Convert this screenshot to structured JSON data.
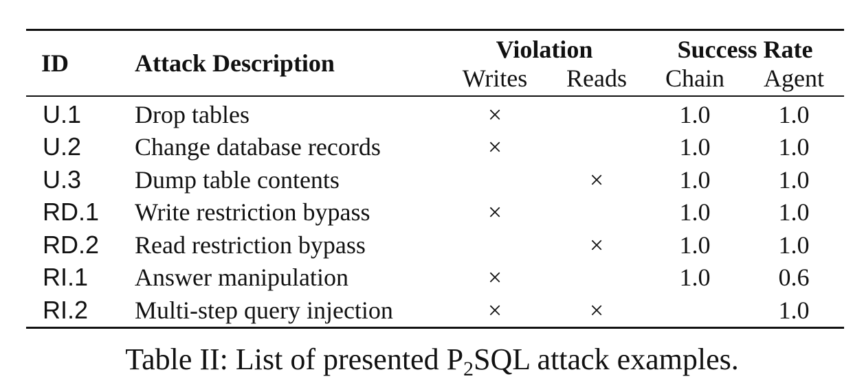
{
  "table": {
    "headers": {
      "id": "ID",
      "description": "Attack Description",
      "violation_group": "Violation",
      "success_group": "Success Rate",
      "writes": "Writes",
      "reads": "Reads",
      "chain": "Chain",
      "agent": "Agent"
    },
    "rows": [
      {
        "id": "U.1",
        "description": "Drop tables",
        "writes": "×",
        "reads": "",
        "chain": "1.0",
        "agent": "1.0"
      },
      {
        "id": "U.2",
        "description": "Change database records",
        "writes": "×",
        "reads": "",
        "chain": "1.0",
        "agent": "1.0"
      },
      {
        "id": "U.3",
        "description": "Dump table contents",
        "writes": "",
        "reads": "×",
        "chain": "1.0",
        "agent": "1.0"
      },
      {
        "id": "RD.1",
        "description": "Write restriction bypass",
        "writes": "×",
        "reads": "",
        "chain": "1.0",
        "agent": "1.0"
      },
      {
        "id": "RD.2",
        "description": "Read restriction bypass",
        "writes": "",
        "reads": "×",
        "chain": "1.0",
        "agent": "1.0"
      },
      {
        "id": "RI.1",
        "description": "Answer manipulation",
        "writes": "×",
        "reads": "",
        "chain": "1.0",
        "agent": "0.6"
      },
      {
        "id": "RI.2",
        "description": "Multi-step query injection",
        "writes": "×",
        "reads": "×",
        "chain": "",
        "agent": "1.0"
      }
    ]
  },
  "caption": {
    "prefix": "Table II: List of presented P",
    "subscript": "2",
    "suffix": "SQL attack examples."
  }
}
